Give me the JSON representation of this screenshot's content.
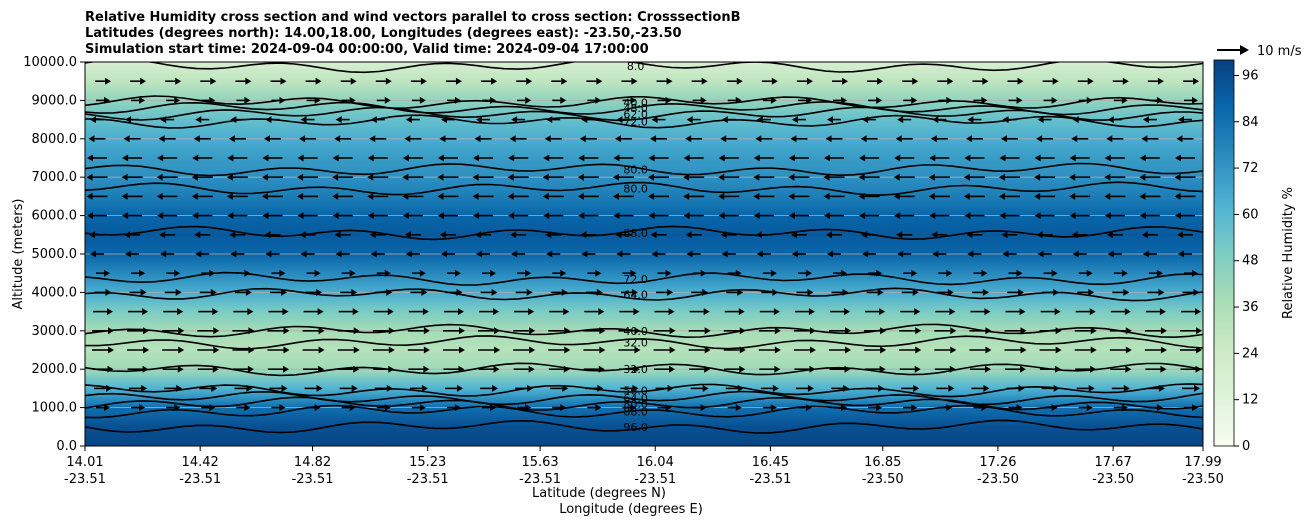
{
  "chart_data": {
    "type": "contour",
    "title_lines": [
      "Relative Humidity cross section and wind vectors parallel to cross section: CrosssectionB",
      "Latitudes (degrees north): 14.00,18.00, Longitudes (degrees east): -23.50,-23.50",
      "Simulation start time: 2024-09-04 00:00:00, Valid time: 2024-09-04 17:00:00"
    ],
    "ylabel": "Altitude (meters)",
    "xlabel_lat": "Latitude (degrees N)",
    "xlabel_lon": "Longitude (degrees E)",
    "ylim": [
      0,
      10000
    ],
    "y_ticks": [
      "0.0",
      "1000.0",
      "2000.0",
      "3000.0",
      "4000.0",
      "5000.0",
      "6000.0",
      "7000.0",
      "8000.0",
      "9000.0",
      "10000.0"
    ],
    "y_tick_values": [
      0,
      1000,
      2000,
      3000,
      4000,
      5000,
      6000,
      7000,
      8000,
      9000,
      10000
    ],
    "x_range": [
      14.01,
      17.99
    ],
    "x_ticks": [
      {
        "lat": "14.01",
        "lon": "-23.51",
        "v": 14.01
      },
      {
        "lat": "14.42",
        "lon": "-23.51",
        "v": 14.42
      },
      {
        "lat": "14.82",
        "lon": "-23.51",
        "v": 14.82
      },
      {
        "lat": "15.23",
        "lon": "-23.51",
        "v": 15.23
      },
      {
        "lat": "15.63",
        "lon": "-23.51",
        "v": 15.63
      },
      {
        "lat": "16.04",
        "lon": "-23.51",
        "v": 16.04
      },
      {
        "lat": "16.45",
        "lon": "-23.51",
        "v": 16.45
      },
      {
        "lat": "16.85",
        "lon": "-23.50",
        "v": 16.85
      },
      {
        "lat": "17.26",
        "lon": "-23.50",
        "v": 17.26
      },
      {
        "lat": "17.67",
        "lon": "-23.50",
        "v": 17.67
      },
      {
        "lat": "17.99",
        "lon": "-23.50",
        "v": 17.99
      }
    ],
    "rh_profile": [
      {
        "z": 0,
        "rh": 98
      },
      {
        "z": 500,
        "rh": 95
      },
      {
        "z": 1000,
        "rh": 85
      },
      {
        "z": 1500,
        "rh": 62
      },
      {
        "z": 2000,
        "rh": 40
      },
      {
        "z": 2500,
        "rh": 33
      },
      {
        "z": 3000,
        "rh": 38
      },
      {
        "z": 3500,
        "rh": 50
      },
      {
        "z": 4000,
        "rh": 64
      },
      {
        "z": 4500,
        "rh": 76
      },
      {
        "z": 5000,
        "rh": 88
      },
      {
        "z": 5500,
        "rh": 92
      },
      {
        "z": 6000,
        "rh": 88
      },
      {
        "z": 6500,
        "rh": 80
      },
      {
        "z": 7000,
        "rh": 74
      },
      {
        "z": 7500,
        "rh": 70
      },
      {
        "z": 8000,
        "rh": 64
      },
      {
        "z": 8500,
        "rh": 56
      },
      {
        "z": 9000,
        "rh": 44
      },
      {
        "z": 9500,
        "rh": 30
      },
      {
        "z": 10000,
        "rh": 18
      }
    ],
    "contour_levels": [
      {
        "z": 500,
        "label": "96.0"
      },
      {
        "z": 900,
        "label": "88.0"
      },
      {
        "z": 1100,
        "label": "80.0"
      },
      {
        "z": 1250,
        "label": "64.0"
      },
      {
        "z": 1450,
        "label": "56.0"
      },
      {
        "z": 2000,
        "label": "32.0"
      },
      {
        "z": 2700,
        "label": "32.0"
      },
      {
        "z": 3000,
        "label": "40.0"
      },
      {
        "z": 3950,
        "label": "64.0"
      },
      {
        "z": 4350,
        "label": "72.0"
      },
      {
        "z": 5550,
        "label": "88.0"
      },
      {
        "z": 6700,
        "label": "80.0"
      },
      {
        "z": 7200,
        "label": "80.0"
      },
      {
        "z": 8450,
        "label": "72.0"
      },
      {
        "z": 8650,
        "label": "62.0"
      },
      {
        "z": 8800,
        "label": "48.0"
      },
      {
        "z": 8950,
        "label": "40.0"
      },
      {
        "z": 9900,
        "label": "8.0"
      }
    ],
    "wind_rows": [
      {
        "z": 9500,
        "dir": 1,
        "mag": 0.5
      },
      {
        "z": 9000,
        "dir": 1,
        "mag": 0.3
      },
      {
        "z": 8500,
        "dir": -1,
        "mag": 0.3
      },
      {
        "z": 8000,
        "dir": -1,
        "mag": 0.6
      },
      {
        "z": 7500,
        "dir": -1,
        "mag": 0.9
      },
      {
        "z": 7000,
        "dir": -1,
        "mag": 1.0
      },
      {
        "z": 6500,
        "dir": -1,
        "mag": 1.0
      },
      {
        "z": 6000,
        "dir": -1,
        "mag": 0.9
      },
      {
        "z": 5500,
        "dir": -1,
        "mag": 0.5
      },
      {
        "z": 5000,
        "dir": -1,
        "mag": 0.3
      },
      {
        "z": 4500,
        "dir": 1,
        "mag": 0.3
      },
      {
        "z": 4000,
        "dir": 1,
        "mag": 0.6
      },
      {
        "z": 3500,
        "dir": 1,
        "mag": 0.9
      },
      {
        "z": 3000,
        "dir": 1,
        "mag": 1.1
      },
      {
        "z": 2500,
        "dir": 1,
        "mag": 1.1
      },
      {
        "z": 2000,
        "dir": 1,
        "mag": 1.0
      },
      {
        "z": 1500,
        "dir": 1,
        "mag": 0.7
      },
      {
        "z": 1000,
        "dir": 1,
        "mag": 0.3
      }
    ],
    "quiver_key_label": "10 m/s",
    "colorbar": {
      "label": "Relative Humidity %",
      "range": [
        0,
        100
      ],
      "ticks": [
        "0",
        "12",
        "24",
        "36",
        "48",
        "60",
        "72",
        "84",
        "96"
      ],
      "tick_values": [
        0,
        12,
        24,
        36,
        48,
        60,
        72,
        84,
        96
      ]
    },
    "colors": {
      "cmap": [
        "#f7fcf0",
        "#e0f3db",
        "#ccebc5",
        "#a8ddb5",
        "#7bccc4",
        "#4eb3d3",
        "#2b8cbe",
        "#0868ac",
        "#084081"
      ],
      "contour_line": "#000000",
      "grid": "#b0b0b0",
      "arrow": "#000000"
    }
  }
}
